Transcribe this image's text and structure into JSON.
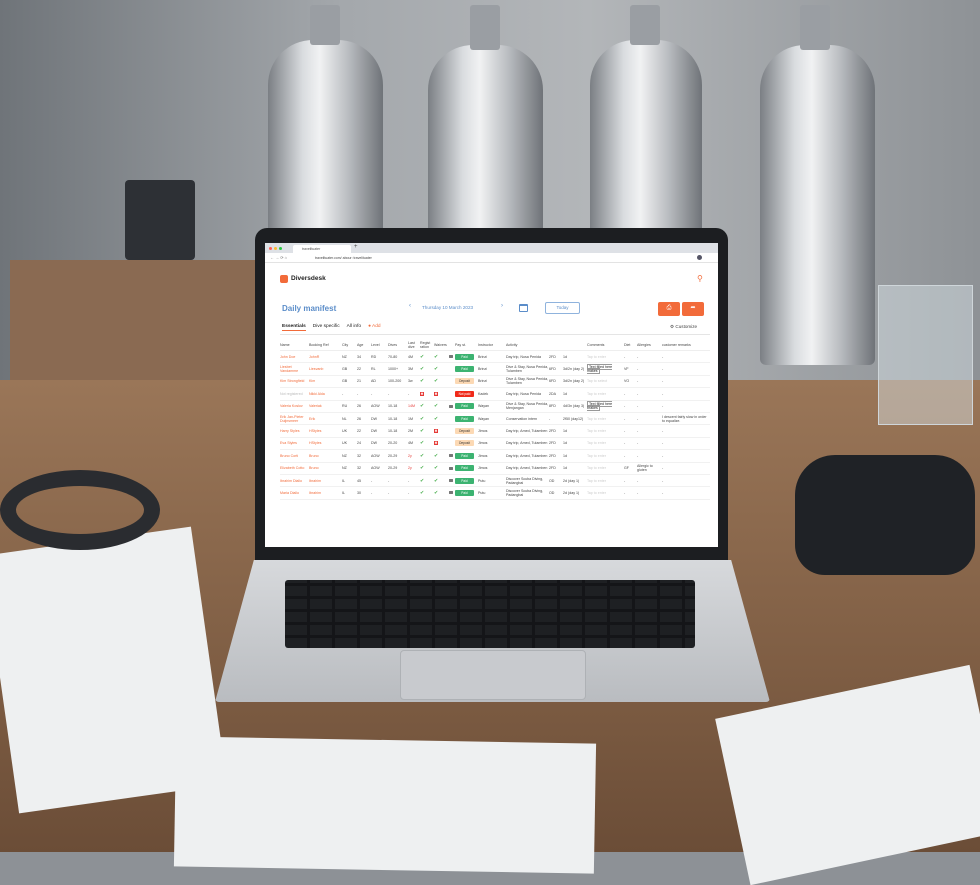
{
  "browser": {
    "tab_title": "travelituater",
    "url": "travelituater.com/ abour: travelituater",
    "new_tab": "+"
  },
  "app": {
    "brand": "Diversdesk",
    "title": "Daily manifest",
    "date": "Thursday 10 March 2023",
    "today": "Today",
    "tabs": [
      {
        "label": "Essentials",
        "active": true
      },
      {
        "label": "Dive specific"
      },
      {
        "label": "All info"
      }
    ],
    "add_tab": "Add",
    "customize": "Customize",
    "accent": "#f26b3a",
    "title_color": "#5b8dc9"
  },
  "table": {
    "headers": [
      "Name",
      "Booking Ref",
      "City",
      "Age",
      "Level",
      "Dives",
      "Last dive",
      "Regist ration",
      "Waivers",
      "",
      "Pay st.",
      "Instructor",
      "Activity",
      "",
      "",
      "Comments",
      "Diet",
      "Allergies",
      "customer remarks"
    ],
    "rows": [
      {
        "name": "John Doe",
        "ref": "JohnR",
        "city": "NZ",
        "age": "34",
        "level": "RD",
        "dives": "70-80",
        "last": "4M",
        "reg": "ok",
        "waiv": "ok",
        "lock": true,
        "pay": "Paid",
        "instr": "Brinzi",
        "activity": "Day trip, Nusa Penida",
        "code": "2FD",
        "days": "1d",
        "comment": "Tap to enter",
        "diet": "-",
        "allergy": "-",
        "remarks": "-"
      },
      {
        "name": "Liesbet Vandamme",
        "ref": "Liesvanb",
        "city": "GB",
        "age": "22",
        "level": "RL",
        "dives": "1000+",
        "last": "3M",
        "reg": "ok",
        "waiv": "ok",
        "lock": false,
        "pay": "Paid",
        "instr": "Brinzi",
        "activity": "Dive & Stay, Nusa Penida, Tulamben",
        "code": "6FD",
        "days": "3d/2n (day 2)",
        "comment": "Text filled here makes",
        "comment_filled": true,
        "diet": "VF",
        "allergy": "-",
        "remarks": "-"
      },
      {
        "name": "Kim Strongfield",
        "ref": "Kim",
        "city": "GB",
        "age": "21",
        "level": "AD",
        "dives": "100-200",
        "last": "3w",
        "reg": "ok",
        "waiv": "ok",
        "lock": false,
        "pay": "Deposit",
        "instr": "Brinzi",
        "activity": "Dive & Stay, Nusa Penida, Tulamben",
        "code": "6FD",
        "days": "3d/2n (day 2)",
        "comment": "Tap to select",
        "diet": "VO",
        "allergy": "-",
        "remarks": "-"
      },
      {
        "name": "Not registered",
        "grey": true,
        "ref": "Nikki Alda",
        "city": "-",
        "age": "-",
        "level": "-",
        "dives": "-",
        "last": "-",
        "reg": "no",
        "waiv": "no",
        "lock": false,
        "pay": "Not paid",
        "instr": "Kadek",
        "activity": "Day trip, Nusa Penida",
        "code": "2DA",
        "days": "1d",
        "comment": "Tap to enter",
        "diet": "-",
        "allergy": "-",
        "remarks": "-"
      },
      {
        "name": "Valeria Koslov",
        "ref": "Valeriak",
        "city": "RU",
        "age": "26",
        "level": "AOW",
        "dives": "10-18",
        "last": "14M",
        "last_red": true,
        "reg": "ok",
        "waiv": "ok",
        "lock": true,
        "pay": "Paid",
        "instr": "Wayan",
        "activity": "Dive & Stay, Nusa Penida, Menjangan",
        "code": "8FD",
        "days": "4d/3n (day 3)",
        "comment": "Text filled here brakes",
        "comment_filled": true,
        "diet": "-",
        "allergy": "-",
        "remarks": "-"
      },
      {
        "name": "Erik Jan-Pieter Duijnsmeer",
        "ref": "Erik",
        "city": "NL",
        "age": "26",
        "level": "DW",
        "dives": "10-18",
        "last": "1M",
        "reg": "ok",
        "waiv": "ok",
        "lock": false,
        "pay": "Paid",
        "instr": "Wayan",
        "activity": "Conservation intern",
        "code": "-",
        "days": "2f50 (day12)",
        "comment": "Tap to enter",
        "diet": "-",
        "allergy": "-",
        "remarks": "I descent fairly slow in order to equalize."
      },
      {
        "name": "Harry Styles",
        "ref": "HStyles",
        "city": "UK",
        "age": "22",
        "level": "DW",
        "dives": "10-18",
        "last": "2M",
        "reg": "ok",
        "waiv": "no",
        "lock": false,
        "pay": "Deposit",
        "instr": "Jimos",
        "activity": "Day trip, Amed, Tulamben",
        "code": "2FD",
        "days": "1d",
        "comment": "Tap to enter",
        "diet": "-",
        "allergy": "-",
        "remarks": "-"
      },
      {
        "name": "Eva Styles",
        "ref": "HStyles",
        "city": "UK",
        "age": "24",
        "level": "DW",
        "dives": "20-20",
        "last": "4M",
        "reg": "ok",
        "waiv": "no",
        "lock": false,
        "pay": "Deposit",
        "instr": "Jimos",
        "activity": "Day trip, Amed, Tulamben",
        "code": "2FD",
        "days": "1d",
        "comment": "Tap to enter",
        "diet": "-",
        "allergy": "-",
        "remarks": "-"
      },
      {
        "name": "Bruno Corti",
        "ref": "Bruno",
        "city": "NZ",
        "age": "32",
        "level": "AOW",
        "dives": "20-29",
        "last": "2y",
        "last_red": true,
        "reg": "ok",
        "waiv": "ok",
        "lock": true,
        "pay": "Paid",
        "instr": "Jimos",
        "activity": "Day trip, Amed, Tulamben",
        "code": "2FD",
        "days": "1d",
        "comment": "Tap to enter",
        "diet": "-",
        "allergy": "-",
        "remarks": "-"
      },
      {
        "name": "Elizabeth Cotto",
        "ref": "Bruno",
        "city": "NZ",
        "age": "32",
        "level": "AOW",
        "dives": "20-29",
        "last": "2y",
        "last_red": true,
        "reg": "ok",
        "waiv": "ok",
        "lock": true,
        "pay": "Paid",
        "instr": "Jimos",
        "activity": "Day trip, Amed, Tulamben",
        "code": "2FD",
        "days": "1d",
        "comment": "Tap to enter",
        "diet": "GF",
        "allergy": "Allergic to gluten",
        "remarks": "-"
      },
      {
        "name": "Ibrahim Diallo",
        "ref": "Ibrahim",
        "city": "IL",
        "age": "45",
        "level": "-",
        "dives": "-",
        "last": "-",
        "reg": "ok",
        "waiv": "ok",
        "lock": true,
        "pay": "Paid",
        "instr": "Putu",
        "activity": "Discover Scuba Diving, Padangbai",
        "code": "OD",
        "days": "2d (day 1)",
        "comment": "Tap to enter",
        "diet": "-",
        "allergy": "-",
        "remarks": "-"
      },
      {
        "name": "Maria Diallo",
        "ref": "Ibrahim",
        "city": "IL",
        "age": "30",
        "level": "-",
        "dives": "-",
        "last": "-",
        "reg": "ok",
        "waiv": "ok",
        "lock": true,
        "pay": "Paid",
        "instr": "Putu",
        "activity": "Discover Scuba Diving, Padangbai",
        "code": "OD",
        "days": "2d (day 1)",
        "comment": "Tap to enter",
        "diet": "-",
        "allergy": "-",
        "remarks": "-"
      }
    ]
  },
  "colors": {
    "paid": "#3cb371",
    "deposit": "#fcd9b4",
    "not_paid": "#f02a1a",
    "check": "#4caf50",
    "cross": "#e53935"
  },
  "icons": {
    "check": "✔",
    "cross": "✖",
    "prev": "‹",
    "next": "›",
    "calendar": "calendar-icon",
    "print": "printer-icon",
    "share": "share-icon",
    "gear": "⚙",
    "user": "user-icon"
  }
}
